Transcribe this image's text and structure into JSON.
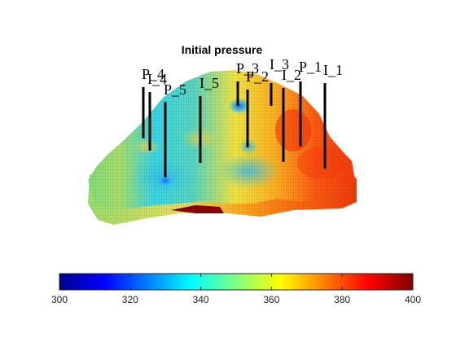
{
  "figure": {
    "title": "Initial pressure",
    "colormap": "jet",
    "wells": [
      {
        "name": "P_4"
      },
      {
        "name": "I_4"
      },
      {
        "name": "P_5"
      },
      {
        "name": "I_5"
      },
      {
        "name": "P_3"
      },
      {
        "name": "P_2"
      },
      {
        "name": "I_3"
      },
      {
        "name": "I_2"
      },
      {
        "name": "P_1"
      },
      {
        "name": "I_1"
      }
    ],
    "colorbar": {
      "min": 300,
      "max": 400,
      "ticks": [
        "300",
        "320",
        "340",
        "360",
        "380",
        "400"
      ]
    }
  }
}
